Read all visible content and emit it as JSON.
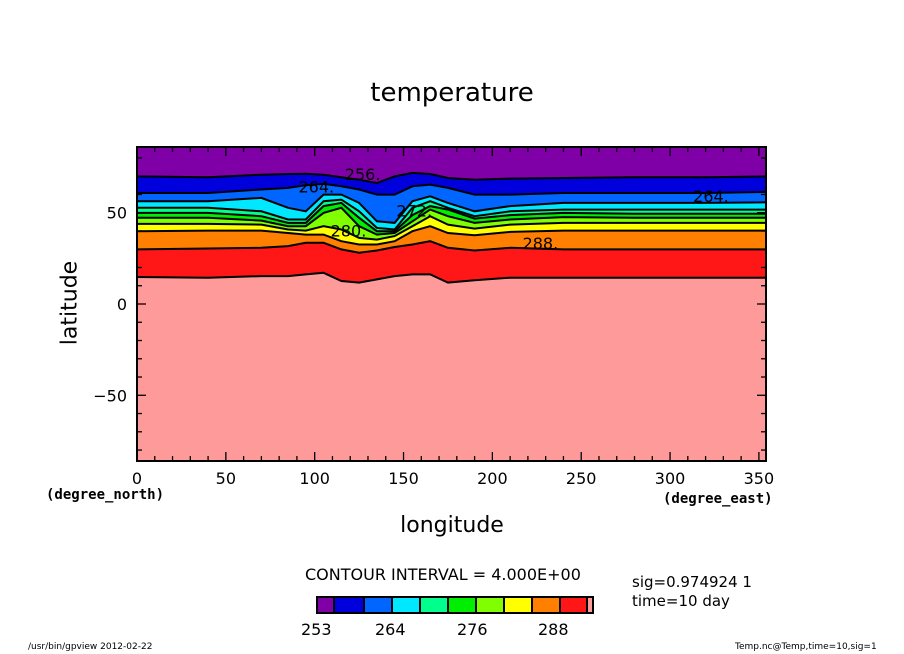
{
  "chart_data": {
    "type": "contour",
    "title": "temperature",
    "xlabel": "longitude",
    "ylabel": "latitude",
    "x_unit": "(degree_east)",
    "y_unit": "(degree_north)",
    "xlim": [
      0,
      354
    ],
    "ylim": [
      -86,
      86
    ],
    "x_ticks": [
      0,
      50,
      100,
      150,
      200,
      250,
      300,
      350
    ],
    "y_ticks": [
      -50,
      0,
      50
    ],
    "grid": false,
    "contour_interval_label": "CONTOUR INTERVAL = 4.000E+00",
    "contour_lon": [
      0,
      40,
      70,
      85,
      95,
      105,
      115,
      125,
      135,
      145,
      155,
      165,
      175,
      190,
      210,
      240,
      280,
      320,
      354
    ],
    "contours": [
      {
        "level": 292,
        "lat": [
          14.8,
          14.4,
          15.3,
          15.3,
          16.2,
          17.1,
          12.6,
          11.7,
          13.5,
          15.3,
          16.2,
          16.2,
          11.7,
          13.0,
          14.4,
          14.4,
          14.4,
          14.4,
          14.4
        ]
      },
      {
        "level": 288,
        "lat": [
          29.9,
          30.4,
          30.8,
          31.7,
          33.5,
          33.5,
          29.9,
          28.1,
          29.3,
          31.2,
          32.6,
          34.4,
          30.8,
          29.3,
          30.8,
          29.9,
          29.9,
          29.9,
          29.9
        ]
      },
      {
        "level": 284,
        "lat": [
          39.9,
          40.2,
          40.2,
          38.9,
          38.0,
          38.0,
          34.4,
          32.6,
          32.6,
          34.4,
          39.9,
          42.6,
          38.9,
          37.7,
          39.5,
          40.2,
          40.2,
          40.2,
          40.2
        ]
      },
      {
        "level": 280,
        "lat": [
          43.9,
          43.9,
          43.5,
          40.8,
          40.2,
          42.6,
          40.8,
          36.2,
          35.3,
          37.2,
          42.6,
          48.1,
          43.5,
          41.3,
          43.5,
          44.4,
          44.4,
          44.4,
          44.4
        ]
      },
      {
        "level": 276,
        "lat": [
          47.2,
          47.2,
          45.7,
          42.6,
          42.6,
          49.9,
          52.7,
          42.6,
          38.0,
          38.9,
          45.3,
          51.7,
          48.1,
          44.4,
          46.3,
          47.6,
          47.2,
          47.2,
          47.2
        ]
      },
      {
        "level": 272,
        "lat": [
          49.9,
          49.9,
          48.1,
          44.4,
          44.4,
          53.6,
          55.4,
          47.2,
          39.9,
          39.9,
          48.7,
          53.6,
          51.7,
          46.8,
          48.7,
          49.9,
          49.4,
          49.4,
          49.4
        ]
      },
      {
        "level": 268,
        "lat": [
          52.7,
          52.7,
          50.8,
          46.3,
          46.3,
          56.3,
          57.2,
          50.8,
          41.7,
          40.8,
          52.7,
          56.3,
          52.7,
          48.1,
          50.8,
          51.7,
          51.7,
          51.7,
          51.7
        ]
      },
      {
        "level": 264,
        "lat": [
          56.3,
          56.3,
          58.1,
          52.7,
          50.8,
          59.9,
          59.9,
          55.4,
          45.3,
          44.4,
          56.3,
          59.0,
          55.4,
          50.8,
          53.6,
          55.4,
          55.4,
          55.4,
          55.7
        ]
      },
      {
        "level": 260,
        "lat": [
          60.8,
          60.8,
          62.7,
          63.6,
          65.0,
          65.8,
          64.5,
          62.7,
          59.9,
          59.9,
          64.5,
          65.4,
          63.6,
          59.9,
          59.9,
          60.8,
          60.8,
          60.8,
          61.4
        ]
      },
      {
        "level": 256,
        "lat": [
          69.9,
          69.4,
          70.8,
          71.2,
          71.4,
          70.8,
          69.4,
          68.1,
          66.3,
          69.9,
          71.8,
          71.2,
          69.0,
          68.1,
          68.7,
          69.0,
          69.4,
          69.4,
          69.9
        ]
      }
    ],
    "contour_labels": [
      {
        "text": "256.",
        "lon": 113,
        "lat": 68
      },
      {
        "text": "264.",
        "lon": 92,
        "lat": 61
      },
      {
        "text": "272.",
        "lon": 146,
        "lat": 48
      },
      {
        "text": "280.",
        "lon": 109,
        "lat": 37
      },
      {
        "text": "288.",
        "lon": 217,
        "lat": 30
      },
      {
        "text": "264.",
        "lon": 313,
        "lat": 56
      }
    ],
    "colorbar": {
      "colors": [
        "#7f00a6",
        "#0000dc",
        "#0066ff",
        "#00e8ff",
        "#00ff8c",
        "#00ee00",
        "#80ff00",
        "#ffff00",
        "#ff8000",
        "#ff1616",
        "#ff9a9a"
      ],
      "tick_labels": [
        "253",
        "264",
        "276",
        "288"
      ]
    },
    "band_colors_low_to_high_lat": {
      "below_292": "#ff9a9a"
    }
  },
  "info": {
    "sig": "sig=0.974924 1",
    "time": "time=10 day"
  },
  "footer": {
    "left": "/usr/bin/gpview  2012-02-22",
    "right": "Temp.nc@Temp,time=10,sig=1"
  }
}
